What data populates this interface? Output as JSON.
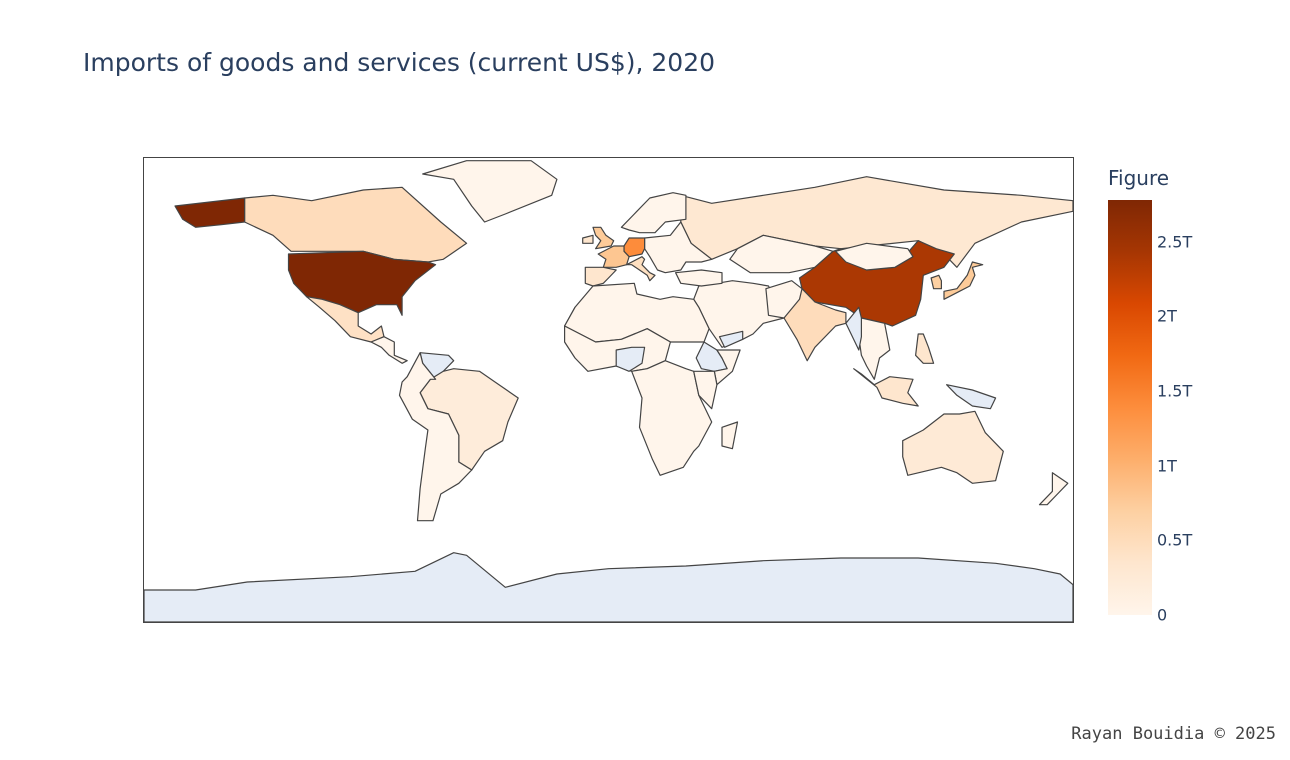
{
  "title": "Imports of goods and services (current US$), 2020",
  "colorbar": {
    "title": "Figure",
    "ticks": [
      "0",
      "0.5T",
      "1T",
      "1.5T",
      "2T",
      "2.5T"
    ],
    "tick_values": [
      0,
      0.5,
      1,
      1.5,
      2,
      2.5
    ],
    "max": 2.78,
    "colorscale": [
      "#fff5eb",
      "#fee6ce",
      "#fdd0a2",
      "#fdae6b",
      "#fd8d3c",
      "#f16913",
      "#d94801",
      "#a63603",
      "#7f2704"
    ]
  },
  "credit": "Rayan Bouidia © 2025",
  "colors": {
    "no_data": "#e5ecf6",
    "border": "#444444"
  },
  "chart_data": {
    "type": "choropleth",
    "value_unit": "trillion US$",
    "projection": "equirectangular",
    "regions": [
      {
        "name": "United States",
        "value": 2.78
      },
      {
        "name": "China",
        "value": 2.4
      },
      {
        "name": "Germany",
        "value": 1.4
      },
      {
        "name": "United Kingdom",
        "value": 0.75
      },
      {
        "name": "France",
        "value": 0.8
      },
      {
        "name": "Japan",
        "value": 0.75
      },
      {
        "name": "India",
        "value": 0.5
      },
      {
        "name": "Canada",
        "value": 0.5
      },
      {
        "name": "Mexico",
        "value": 0.42
      },
      {
        "name": "Russia",
        "value": 0.3
      },
      {
        "name": "Brazil",
        "value": 0.2
      },
      {
        "name": "Australia",
        "value": 0.25
      },
      {
        "name": "Italy",
        "value": 0.45
      },
      {
        "name": "Spain",
        "value": 0.35
      }
    ],
    "no_data_regions": [
      "Antarctica",
      "Venezuela",
      "Nigeria",
      "Western Sahara",
      "Ethiopia",
      "Yemen",
      "Myanmar",
      "Papua New Guinea"
    ]
  }
}
